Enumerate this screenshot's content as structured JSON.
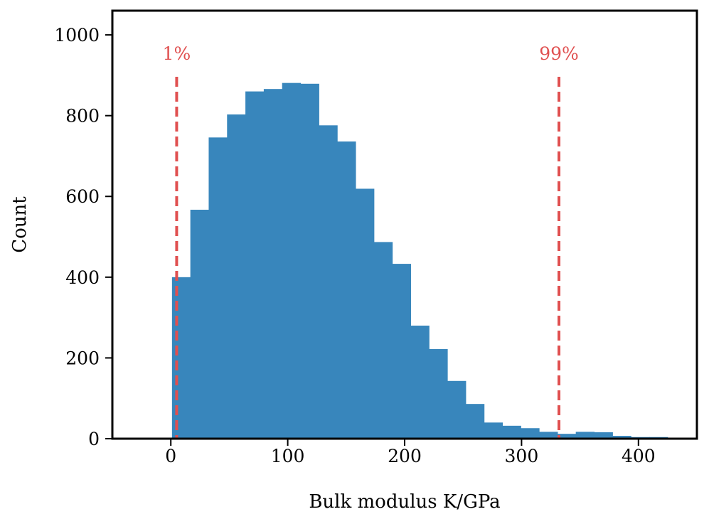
{
  "chart_data": {
    "type": "bar",
    "xlabel": "Bulk modulus K/GPa",
    "ylabel": "Count",
    "xlim": [
      -50,
      450
    ],
    "ylim": [
      0,
      1060
    ],
    "grid": false,
    "bar_color": "#3886bc",
    "bin_edges": [
      1,
      16.7,
      32.4,
      48.1,
      63.8,
      79.5,
      95.2,
      110.9,
      126.6,
      142.3,
      158,
      173.7,
      189.4,
      205.1,
      220.8,
      236.5,
      252.2,
      267.9,
      283.6,
      299.3,
      315,
      330.7,
      346.4,
      362.1,
      377.8,
      393.5,
      409.2,
      424.9
    ],
    "values": [
      400,
      567,
      746,
      803,
      860,
      866,
      881,
      879,
      776,
      736,
      619,
      487,
      433,
      280,
      222,
      143,
      86,
      40,
      32,
      26,
      17,
      12,
      17,
      16,
      7,
      4,
      4
    ],
    "x_ticks": [
      0,
      100,
      200,
      300,
      400
    ],
    "x_tick_labels": [
      "0",
      "100",
      "200",
      "300",
      "400"
    ],
    "y_ticks": [
      0,
      200,
      400,
      600,
      800,
      1000
    ],
    "y_tick_labels": [
      "0",
      "200",
      "400",
      "600",
      "800",
      "1000"
    ],
    "reference_lines": [
      {
        "x": 5,
        "label": "1%",
        "color": "#e05050"
      },
      {
        "x": 332,
        "label": "99%",
        "color": "#e05050"
      }
    ]
  }
}
